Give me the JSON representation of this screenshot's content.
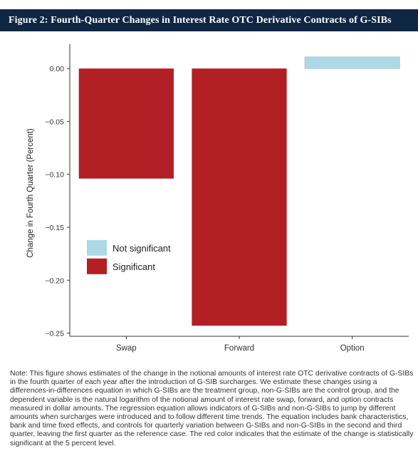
{
  "figure": {
    "header": "Figure 2: Fourth-Quarter Changes in Interest Rate OTC Derivative Contracts of G-SIBs",
    "note": "Note: This figure shows estimates of the change in the notional amounts of interest rate OTC derivative contracts of G-SIBs in the fourth quarter of each year after the introduction of G-SIB surcharges. We estimate these changes using a differences-in-differences equation in which G-SIBs are the treatment group, non-G-SIBs are the control group, and the dependent variable is the natural logarithm of the notional amount of interest rate swap, forward, and option contracts measured in dollar amounts. The regression equation allows indicators of G-SIBs and non-G-SIBs to jump by different amounts when surcharges were introduced and to follow different time trends. The equation includes bank characteristics, bank and time fixed effects, and controls for quarterly variation between G-SIBs and non-G-SIBs in the second and third quarter, leaving the first quarter as the reference case. The red color indicates that the estimate of the change is statistically significant at the 5 percent level."
  },
  "colors": {
    "header_bg": "#0f2743",
    "significant": "#b22025",
    "not_significant": "#add8e6"
  },
  "chart_data": {
    "type": "bar",
    "categories": [
      "Swap",
      "Forward",
      "Option"
    ],
    "values": [
      -0.104,
      -0.243,
      0.011
    ],
    "significance": [
      "Significant",
      "Significant",
      "Not significant"
    ],
    "title": "",
    "xlabel": "",
    "ylabel": "Change in Fourth Quarter (Percent)",
    "ylim": [
      -0.253,
      0.023
    ],
    "yticks": [
      0.0,
      -0.05,
      -0.1,
      -0.15,
      -0.2,
      -0.25
    ],
    "ytick_labels": [
      "0.00",
      "−0.05",
      "−0.10",
      "−0.15",
      "−0.20",
      "−0.25"
    ],
    "legend": {
      "position": "lower-left",
      "entries": [
        {
          "label": "Not significant",
          "color": "#add8e6"
        },
        {
          "label": "Significant",
          "color": "#b22025"
        }
      ]
    },
    "grid": false
  }
}
